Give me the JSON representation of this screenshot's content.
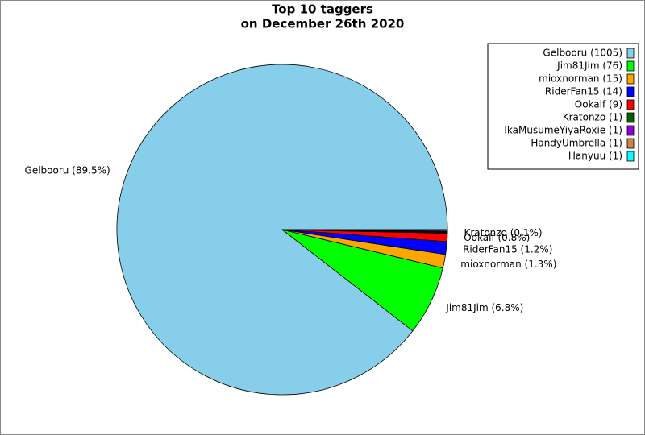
{
  "chart_data": {
    "type": "pie",
    "title": "Top 10 taggers",
    "subtitle": "on December 26th 2020",
    "categories": [
      "Gelbooru",
      "Jim81Jim",
      "mioxnorman",
      "RiderFan15",
      "Ookalf",
      "Kratonzo",
      "IkaMusumeYiyaRoxie",
      "HandyUmbrella",
      "Hanyuu"
    ],
    "values": [
      1005,
      76,
      15,
      14,
      9,
      1,
      1,
      1,
      1
    ],
    "legend_labels": [
      "Gelbooru (1005)",
      "Jim81Jim (76)",
      "mioxnorman (15)",
      "RiderFan15 (14)",
      "Ookalf (9)",
      "Kratonzo (1)",
      "IkaMusumeYiyaRoxie (1)",
      "HandyUmbrella (1)",
      "Hanyuu (1)"
    ],
    "value_labels": [
      "Gelbooru (89.5%)",
      "Jim81Jim (6.8%)",
      "mioxnorman (1.3%)",
      "RiderFan15 (1.2%)",
      "Ookalf (0.8%)",
      "Kratonzo (0.1%)",
      null,
      null,
      null
    ],
    "colors": [
      "#87ceeb",
      "#00ff00",
      "#ffa500",
      "#0000ff",
      "#ff0000",
      "#006400",
      "#9400d3",
      "#cd853f",
      "#00ffff"
    ],
    "legend": "upper right"
  }
}
